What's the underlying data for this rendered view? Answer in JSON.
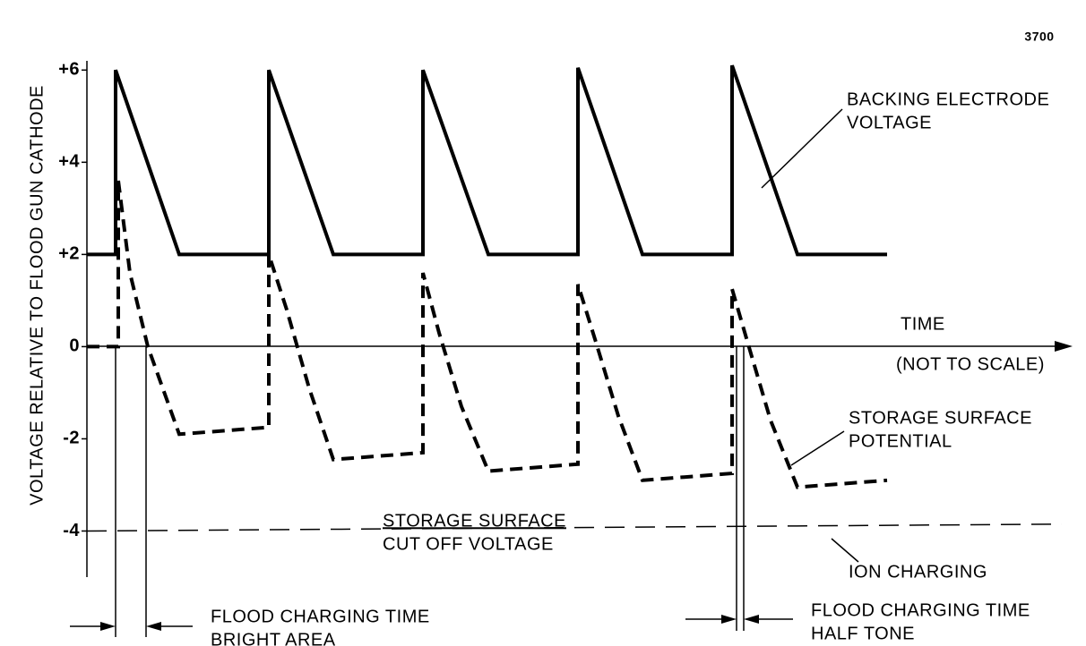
{
  "chart_data": {
    "type": "line",
    "figure_number": "3700",
    "y_label": "VOLTAGE RELATIVE TO FLOOD GUN CATHODE",
    "x_label": "TIME",
    "x_note": "(NOT TO SCALE)",
    "ylim": [
      -5,
      6.2
    ],
    "xlim": [
      0,
      1100
    ],
    "yticks": [
      {
        "value": 6,
        "label": "+6"
      },
      {
        "value": 4,
        "label": "+4"
      },
      {
        "value": 2,
        "label": "+2"
      },
      0,
      -2,
      -4
    ],
    "series": [
      {
        "color": "#000000",
        "style": "solid",
        "x": [
          0,
          32,
          32,
          103,
          203,
          203,
          275,
          375,
          375,
          448,
          548,
          548,
          620,
          720,
          720,
          793,
          893
        ],
        "values": [
          2,
          2,
          6,
          2,
          2,
          6,
          2,
          2,
          6,
          2,
          2,
          6.05,
          2,
          2,
          6.1,
          2,
          2
        ]
      },
      {
        "color": "#000000",
        "style": "dashed",
        "x": [
          0,
          35,
          35,
          48,
          68,
          103,
          203,
          203,
          223,
          248,
          275,
          375,
          375,
          393,
          418,
          448,
          548,
          548,
          568,
          593,
          620,
          720,
          720,
          738,
          763,
          793,
          893
        ],
        "values": [
          0,
          0,
          3.6,
          1.6,
          0,
          -1.9,
          -1.75,
          2,
          0.8,
          -0.9,
          -2.45,
          -2.3,
          1.6,
          0.3,
          -1.3,
          -2.7,
          -2.55,
          1.35,
          0.1,
          -1.5,
          -2.9,
          -2.75,
          1.25,
          0.05,
          -1.6,
          -3.05,
          -2.9
        ]
      },
      {
        "color": "#000000",
        "style": "thin-dashed",
        "x": [
          0,
          1088
        ],
        "values": [
          -4,
          -3.85
        ]
      }
    ],
    "annotations": [
      {
        "lines": [
          "BACKING ELECTRODE",
          "VOLTAGE"
        ]
      },
      {
        "lines": [
          "STORAGE SURFACE",
          "POTENTIAL"
        ]
      },
      {
        "lines": [
          "STORAGE SURFACE",
          "CUT OFF VOLTAGE"
        ]
      },
      {
        "lines": [
          "ION CHARGING"
        ]
      },
      {
        "lines": [
          "FLOOD CHARGING TIME",
          "BRIGHT AREA"
        ]
      },
      {
        "lines": [
          "FLOOD CHARGING TIME",
          "HALF TONE"
        ]
      }
    ]
  }
}
